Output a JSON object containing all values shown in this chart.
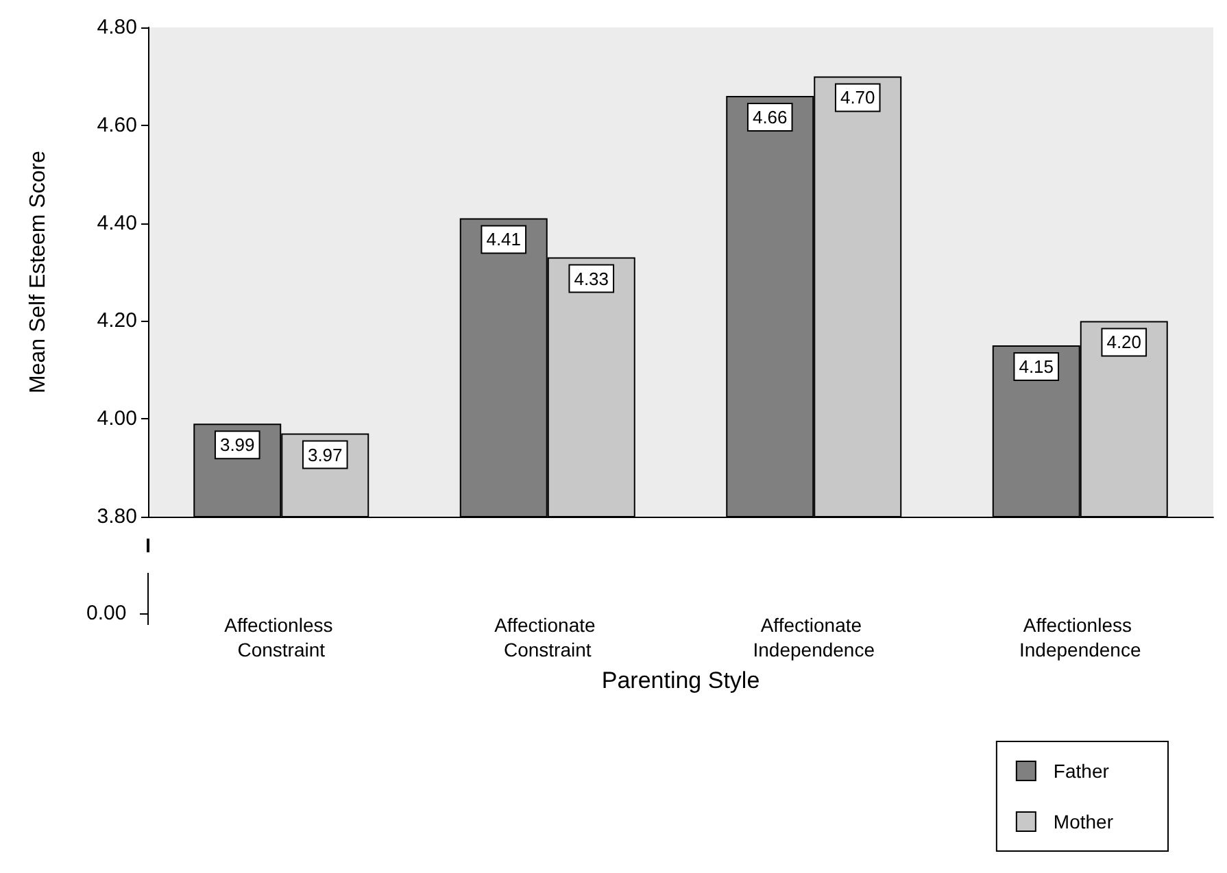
{
  "chart_data": {
    "type": "bar",
    "xlabel": "Parenting Style",
    "ylabel": "Mean Self Esteem Score",
    "categories": [
      "Affectionless Constraint",
      "Affectionate Constraint",
      "Affectionate Independence",
      "Affectionless Independence"
    ],
    "series": [
      {
        "name": "Father",
        "color": "#808080",
        "values": [
          3.99,
          4.41,
          4.66,
          4.15
        ],
        "value_labels": [
          "3.99",
          "4.41",
          "4.66",
          "4.15"
        ]
      },
      {
        "name": "Mother",
        "color": "#c8c8c8",
        "values": [
          3.97,
          4.33,
          4.7,
          4.2
        ],
        "value_labels": [
          "3.97",
          "4.33",
          "4.70",
          "4.20"
        ]
      }
    ],
    "ylim": [
      3.8,
      4.8
    ],
    "yticks": [
      {
        "value": 3.8,
        "label": "3.80"
      },
      {
        "value": 4.0,
        "label": "4.00"
      },
      {
        "value": 4.2,
        "label": "4.20"
      },
      {
        "value": 4.4,
        "label": "4.40"
      },
      {
        "value": 4.6,
        "label": "4.60"
      },
      {
        "value": 4.8,
        "label": "4.80"
      }
    ],
    "annotations": [
      "0.00"
    ],
    "legend": "bottom right",
    "grid": false
  }
}
